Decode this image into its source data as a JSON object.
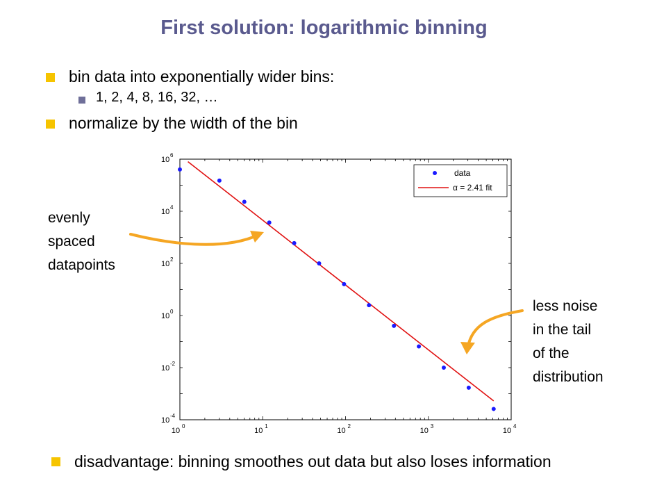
{
  "slide": {
    "title": "First solution: logarithmic binning",
    "bullets": [
      "bin data into exponentially wider bins:",
      "1, 2, 4,  8, 16, 32, …",
      "normalize by the width of the bin"
    ],
    "left_annotation": [
      "evenly",
      "spaced",
      "datapoints"
    ],
    "right_annotation": [
      "less noise",
      "in the tail",
      "of the",
      "distribution"
    ],
    "bottom_bullet": "disadvantage: binning smoothes out data but also loses information",
    "colors": {
      "title": "#5a5a8e",
      "bullet": "#f6c400",
      "sub_bullet": "#6f6f99",
      "arrow": "#f5a623"
    }
  },
  "chart_data": {
    "type": "scatter",
    "x_scale": "log",
    "y_scale": "log",
    "xlim": [
      1,
      10000
    ],
    "ylim": [
      0.0001,
      1000000
    ],
    "x_ticks": [
      {
        "value": 1,
        "base": "10",
        "exp": "0"
      },
      {
        "value": 10,
        "base": "10",
        "exp": "1"
      },
      {
        "value": 100,
        "base": "10",
        "exp": "2"
      },
      {
        "value": 1000,
        "base": "10",
        "exp": "3"
      },
      {
        "value": 10000,
        "base": "10",
        "exp": "4"
      }
    ],
    "y_ticks": [
      {
        "value": 0.0001,
        "base": "10",
        "exp": "-4"
      },
      {
        "value": 0.01,
        "base": "10",
        "exp": "-2"
      },
      {
        "value": 1,
        "base": "10",
        "exp": "0"
      },
      {
        "value": 100,
        "base": "10",
        "exp": "2"
      },
      {
        "value": 10000,
        "base": "10",
        "exp": "4"
      },
      {
        "value": 1000000,
        "base": "10",
        "exp": "6"
      }
    ],
    "series": [
      {
        "name": "data",
        "color": "#1a1aff",
        "marker": "dot",
        "x": [
          1,
          3,
          6,
          12,
          24,
          48,
          96,
          192,
          384,
          768,
          1536,
          3072,
          6144
        ],
        "y": [
          400000,
          150000,
          23000,
          3700,
          600,
          100,
          16,
          2.5,
          0.4,
          0.065,
          0.01,
          0.0017,
          0.00026
        ]
      },
      {
        "name": "α = 2.41 fit",
        "color": "#e01010",
        "style": "line",
        "x": [
          1.25,
          6144
        ],
        "y": [
          800000,
          0.00053
        ]
      }
    ],
    "legend": {
      "position": "top-right",
      "entries": [
        "data",
        "α = 2.41 fit"
      ]
    },
    "grid": false
  }
}
